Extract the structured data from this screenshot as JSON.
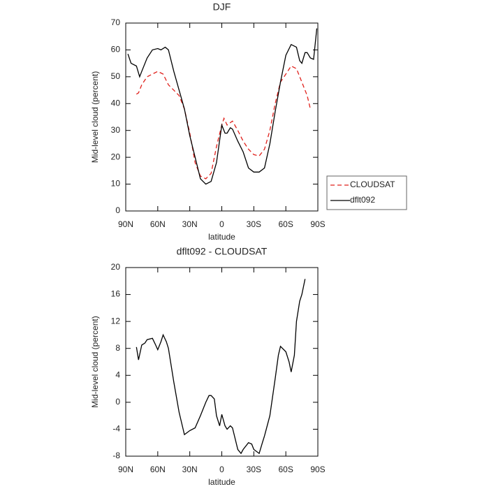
{
  "chart_data": [
    {
      "type": "line",
      "title": "DJF",
      "xlabel": "latitude",
      "ylabel": "Mid-level cloud (percent)",
      "xlim": [
        90,
        -90
      ],
      "xticks": [
        {
          "value": 90,
          "label": "90N"
        },
        {
          "value": 60,
          "label": "60N"
        },
        {
          "value": 30,
          "label": "30N"
        },
        0,
        {
          "value": -30,
          "label": "30S"
        },
        {
          "value": -60,
          "label": "60S"
        },
        {
          "value": -90,
          "label": "90S"
        }
      ],
      "ylim": [
        0,
        70
      ],
      "yticks": [
        0,
        10,
        20,
        30,
        40,
        50,
        60,
        70
      ],
      "legend": "right",
      "series": [
        {
          "name": "CLOUDSAT",
          "color": "#e0201b",
          "style": "dashed",
          "x": [
            80,
            78,
            75,
            70,
            65,
            60,
            55,
            50,
            45,
            40,
            35,
            30,
            25,
            20,
            15,
            10,
            5,
            0,
            -2,
            -5,
            -10,
            -15,
            -20,
            -25,
            -30,
            -35,
            -40,
            -45,
            -50,
            -55,
            -60,
            -65,
            -70,
            -75,
            -80,
            -83
          ],
          "values": [
            43.5,
            44,
            47,
            50,
            51,
            52,
            51,
            47,
            45,
            43,
            38,
            29,
            18,
            13,
            12,
            14,
            24,
            32,
            34.5,
            32,
            33.5,
            30,
            26,
            23,
            21,
            20.5,
            23,
            30,
            40,
            48,
            51,
            54,
            53,
            48,
            43,
            38
          ]
        },
        {
          "name": "dflt092",
          "color": "#000000",
          "style": "solid",
          "x": [
            88,
            85,
            80,
            77,
            75,
            70,
            65,
            60,
            57,
            53,
            50,
            45,
            40,
            35,
            30,
            25,
            20,
            15,
            10,
            5,
            0,
            -3,
            -5,
            -8,
            -10,
            -15,
            -20,
            -25,
            -30,
            -35,
            -40,
            -45,
            -50,
            -55,
            -60,
            -65,
            -70,
            -73,
            -75,
            -78,
            -80,
            -83,
            -86,
            -89
          ],
          "values": [
            58.5,
            55,
            54,
            50,
            52,
            57,
            60,
            60.5,
            60,
            61,
            60,
            52,
            45,
            38,
            28,
            20,
            12,
            10,
            11,
            18,
            32,
            29,
            29,
            31,
            30.5,
            26,
            22,
            16,
            14.5,
            14.5,
            16,
            25,
            37,
            48,
            58,
            62,
            61,
            56,
            55,
            59,
            59,
            57,
            56.5,
            68
          ]
        }
      ]
    },
    {
      "type": "line",
      "title": "dflt092 - CLOUDSAT",
      "xlabel": "latitude",
      "ylabel": "Mid-level cloud (percent)",
      "xlim": [
        90,
        -90
      ],
      "xticks": [
        {
          "value": 90,
          "label": "90N"
        },
        {
          "value": 60,
          "label": "60N"
        },
        {
          "value": 30,
          "label": "30N"
        },
        0,
        {
          "value": -30,
          "label": "30S"
        },
        {
          "value": -60,
          "label": "60S"
        },
        {
          "value": -90,
          "label": "90S"
        }
      ],
      "ylim": [
        -8,
        20
      ],
      "yticks": [
        -8,
        -4,
        0,
        4,
        8,
        12,
        16,
        20
      ],
      "color": "#000000",
      "x": [
        80,
        78,
        75,
        72,
        70,
        65,
        62,
        60,
        57,
        55,
        52,
        50,
        45,
        40,
        35,
        30,
        25,
        20,
        15,
        12,
        10,
        7,
        5,
        2,
        0,
        -3,
        -5,
        -8,
        -10,
        -15,
        -18,
        -20,
        -25,
        -28,
        -30,
        -35,
        -38,
        -40,
        -45,
        -50,
        -53,
        -55,
        -60,
        -63,
        -65,
        -68,
        -70,
        -73,
        -75,
        -78
      ],
      "values": [
        8.2,
        6.3,
        8.5,
        8.8,
        9.3,
        9.5,
        8.5,
        7.8,
        9,
        10,
        9,
        8,
        3,
        -1.5,
        -4.8,
        -4.2,
        -3.8,
        -2,
        0,
        1,
        1,
        0.5,
        -2,
        -3.5,
        -1.8,
        -3.5,
        -4,
        -3.5,
        -3.8,
        -7,
        -7.6,
        -7,
        -6,
        -6.2,
        -7,
        -7.6,
        -6,
        -5,
        -2,
        3.5,
        7,
        8.3,
        7.5,
        6,
        4.5,
        7,
        12,
        15,
        16,
        18.3
      ]
    }
  ]
}
